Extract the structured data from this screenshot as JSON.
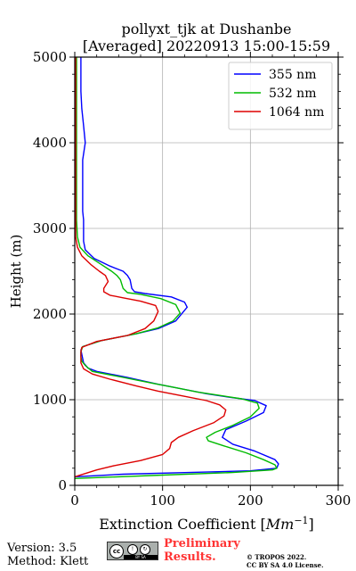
{
  "chart_data": {
    "type": "line",
    "title": "pollyxt_tjk at Dushanbe",
    "subtitle": "[Averaged] 20220913 15:00-15:59",
    "xlabel": "Extinction Coefficient [Mm⁻¹]",
    "xlabel_prefix": "Extinction Coefficient [",
    "xlabel_unit": "Mm",
    "xlabel_exp": "−1",
    "xlabel_suffix": "]",
    "ylabel": "Height (m)",
    "xlim": [
      0,
      300
    ],
    "ylim": [
      0,
      5000
    ],
    "xticks": [
      0,
      100,
      200,
      300
    ],
    "yticks": [
      0,
      1000,
      2000,
      3000,
      4000,
      5000
    ],
    "grid": true,
    "legend_position": "top-right",
    "series": [
      {
        "name": "355 nm",
        "color": "#0000ff",
        "points": [
          [
            0,
            100
          ],
          [
            55,
            130
          ],
          [
            130,
            150
          ],
          [
            200,
            170
          ],
          [
            230,
            200
          ],
          [
            232,
            250
          ],
          [
            228,
            300
          ],
          [
            205,
            400
          ],
          [
            180,
            480
          ],
          [
            168,
            560
          ],
          [
            172,
            650
          ],
          [
            195,
            750
          ],
          [
            215,
            850
          ],
          [
            218,
            930
          ],
          [
            205,
            990
          ],
          [
            175,
            1030
          ],
          [
            150,
            1070
          ],
          [
            120,
            1130
          ],
          [
            95,
            1180
          ],
          [
            60,
            1260
          ],
          [
            25,
            1330
          ],
          [
            15,
            1370
          ],
          [
            10,
            1430
          ],
          [
            9,
            1480
          ],
          [
            8,
            1530
          ],
          [
            7,
            1580
          ],
          [
            9,
            1620
          ],
          [
            30,
            1690
          ],
          [
            70,
            1770
          ],
          [
            95,
            1830
          ],
          [
            115,
            1920
          ],
          [
            128,
            2080
          ],
          [
            125,
            2140
          ],
          [
            110,
            2200
          ],
          [
            80,
            2240
          ],
          [
            68,
            2260
          ],
          [
            65,
            2300
          ],
          [
            63,
            2400
          ],
          [
            60,
            2450
          ],
          [
            55,
            2500
          ],
          [
            40,
            2560
          ],
          [
            22,
            2650
          ],
          [
            12,
            2750
          ],
          [
            10,
            2850
          ],
          [
            10,
            3000
          ],
          [
            10,
            3100
          ],
          [
            9,
            3200
          ],
          [
            9,
            3400
          ],
          [
            9,
            3600
          ],
          [
            9,
            3800
          ],
          [
            12,
            4000
          ],
          [
            10,
            4200
          ],
          [
            8,
            4400
          ],
          [
            7,
            4600
          ],
          [
            7,
            4800
          ],
          [
            7,
            5000
          ]
        ]
      },
      {
        "name": "532 nm",
        "color": "#00bb00",
        "points": [
          [
            0,
            80
          ],
          [
            100,
            120
          ],
          [
            180,
            150
          ],
          [
            225,
            180
          ],
          [
            230,
            200
          ],
          [
            228,
            240
          ],
          [
            215,
            300
          ],
          [
            195,
            380
          ],
          [
            170,
            460
          ],
          [
            152,
            520
          ],
          [
            150,
            560
          ],
          [
            160,
            620
          ],
          [
            180,
            700
          ],
          [
            200,
            800
          ],
          [
            210,
            900
          ],
          [
            208,
            960
          ],
          [
            190,
            1010
          ],
          [
            165,
            1050
          ],
          [
            140,
            1090
          ],
          [
            115,
            1140
          ],
          [
            90,
            1190
          ],
          [
            55,
            1260
          ],
          [
            20,
            1330
          ],
          [
            12,
            1400
          ],
          [
            8,
            1450
          ],
          [
            7,
            1500
          ],
          [
            7,
            1560
          ],
          [
            9,
            1620
          ],
          [
            30,
            1690
          ],
          [
            70,
            1770
          ],
          [
            95,
            1840
          ],
          [
            112,
            1920
          ],
          [
            120,
            2010
          ],
          [
            115,
            2110
          ],
          [
            98,
            2180
          ],
          [
            75,
            2230
          ],
          [
            60,
            2250
          ],
          [
            55,
            2300
          ],
          [
            52,
            2400
          ],
          [
            48,
            2450
          ],
          [
            42,
            2500
          ],
          [
            30,
            2580
          ],
          [
            15,
            2680
          ],
          [
            6,
            2780
          ],
          [
            3,
            2900
          ],
          [
            2,
            3100
          ],
          [
            2,
            3400
          ],
          [
            2,
            3800
          ],
          [
            2,
            4200
          ],
          [
            2,
            4600
          ],
          [
            2,
            5000
          ]
        ]
      },
      {
        "name": "1064 nm",
        "color": "#dd0000",
        "points": [
          [
            0,
            100
          ],
          [
            25,
            180
          ],
          [
            45,
            230
          ],
          [
            75,
            290
          ],
          [
            100,
            360
          ],
          [
            108,
            430
          ],
          [
            110,
            500
          ],
          [
            118,
            560
          ],
          [
            135,
            640
          ],
          [
            158,
            730
          ],
          [
            170,
            810
          ],
          [
            172,
            880
          ],
          [
            165,
            940
          ],
          [
            150,
            990
          ],
          [
            125,
            1040
          ],
          [
            95,
            1100
          ],
          [
            70,
            1160
          ],
          [
            40,
            1240
          ],
          [
            20,
            1300
          ],
          [
            10,
            1360
          ],
          [
            7,
            1430
          ],
          [
            7,
            1500
          ],
          [
            7,
            1560
          ],
          [
            8,
            1610
          ],
          [
            25,
            1680
          ],
          [
            60,
            1750
          ],
          [
            80,
            1830
          ],
          [
            90,
            1920
          ],
          [
            95,
            2030
          ],
          [
            92,
            2100
          ],
          [
            75,
            2150
          ],
          [
            55,
            2190
          ],
          [
            40,
            2220
          ],
          [
            33,
            2260
          ],
          [
            33,
            2300
          ],
          [
            38,
            2380
          ],
          [
            35,
            2450
          ],
          [
            28,
            2500
          ],
          [
            18,
            2580
          ],
          [
            8,
            2680
          ],
          [
            3,
            2780
          ],
          [
            1,
            2900
          ],
          [
            1,
            3100
          ],
          [
            1,
            3400
          ],
          [
            1,
            3800
          ],
          [
            1,
            4200
          ],
          [
            1,
            4600
          ],
          [
            1,
            5000
          ]
        ]
      }
    ]
  },
  "footer": {
    "version": "Version: 3.5",
    "method": "Method: Klett",
    "cc_text": "cc",
    "cc_by": "BY",
    "cc_sa": "SA",
    "preliminary_1": "Preliminary",
    "preliminary_2": "Results.",
    "copyright": "© TROPOS 2022.",
    "license": "CC BY SA 4.0 License."
  }
}
